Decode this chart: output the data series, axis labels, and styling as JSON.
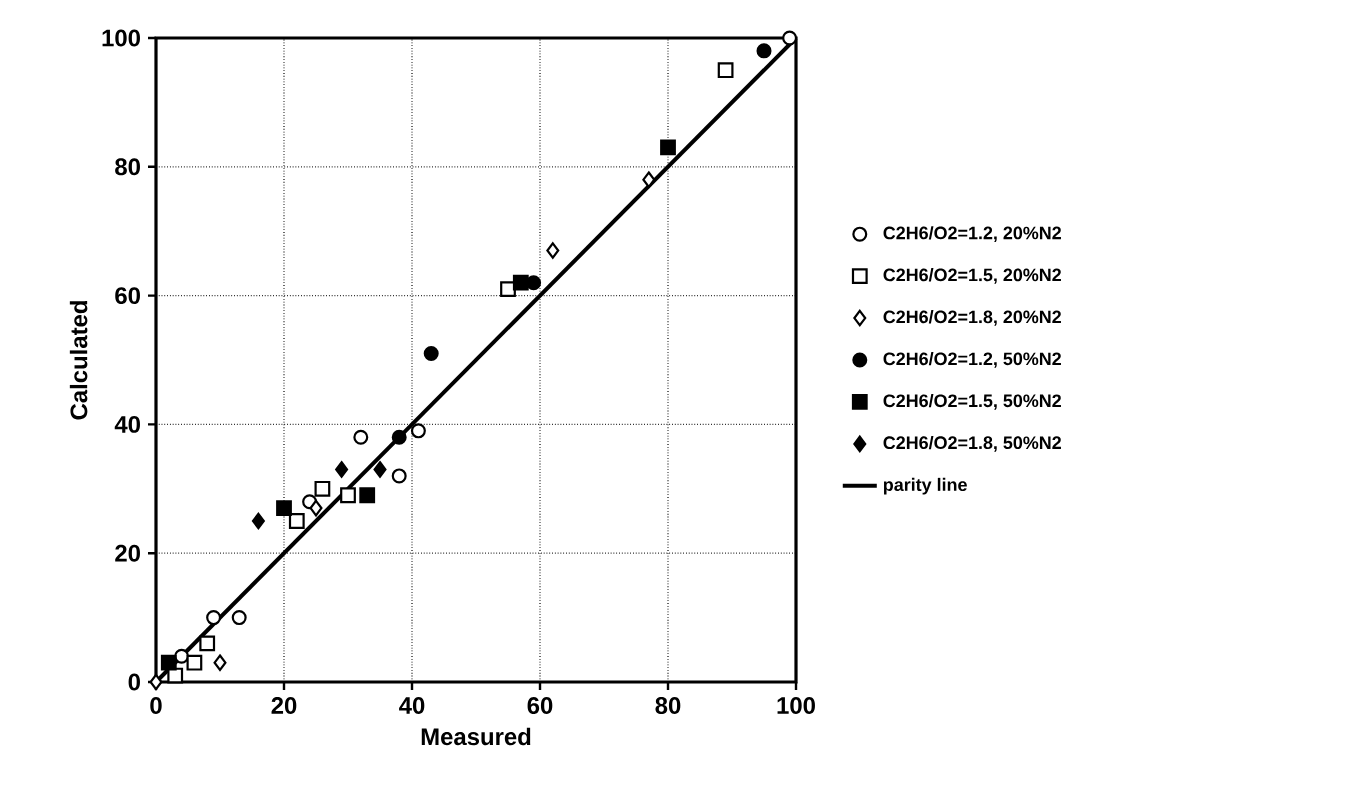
{
  "chart_data": {
    "type": "scatter",
    "xlabel": "Measured",
    "ylabel": "Calculated",
    "xlim": [
      0,
      100
    ],
    "ylim": [
      0,
      100
    ],
    "xticks": [
      0,
      20,
      40,
      60,
      80,
      100
    ],
    "yticks": [
      0,
      20,
      40,
      60,
      80,
      100
    ],
    "grid": true,
    "legend": "right",
    "series": [
      {
        "name": "C2H6/O2=1.2, 20%N2",
        "color": "#ffffff",
        "marker": "circle",
        "x": [
          4,
          9,
          13,
          24,
          32,
          38,
          41,
          99
        ],
        "values": [
          4,
          10,
          10,
          28,
          38,
          32,
          39,
          100
        ]
      },
      {
        "name": "C2H6/O2=1.5, 20%N2",
        "color": "#ffffff",
        "marker": "square",
        "x": [
          3,
          6,
          8,
          22,
          26,
          30,
          55,
          89
        ],
        "values": [
          1,
          3,
          6,
          25,
          30,
          29,
          61,
          95
        ]
      },
      {
        "name": "C2H6/O2=1.8, 20%N2",
        "color": "#ffffff",
        "marker": "diamond",
        "x": [
          0,
          10,
          25,
          62,
          77
        ],
        "values": [
          0,
          3,
          27,
          67,
          78
        ]
      },
      {
        "name": "C2H6/O2=1.2, 50%N2",
        "color": "#000000",
        "marker": "circle",
        "x": [
          38,
          43,
          59,
          95
        ],
        "values": [
          38,
          51,
          62,
          98
        ]
      },
      {
        "name": "C2H6/O2=1.5, 50%N2",
        "color": "#000000",
        "marker": "square",
        "x": [
          2,
          20,
          33,
          57,
          80
        ],
        "values": [
          3,
          27,
          29,
          62,
          83
        ]
      },
      {
        "name": "C2H6/O2=1.8, 50%N2",
        "color": "#000000",
        "marker": "diamond",
        "x": [
          16,
          29,
          35
        ],
        "values": [
          25,
          33,
          33
        ]
      },
      {
        "name": "parity line",
        "type": "line",
        "color": "#000000",
        "marker": "none",
        "line_style": "solid",
        "x": [
          0,
          100
        ],
        "values": [
          0,
          100
        ]
      }
    ]
  }
}
